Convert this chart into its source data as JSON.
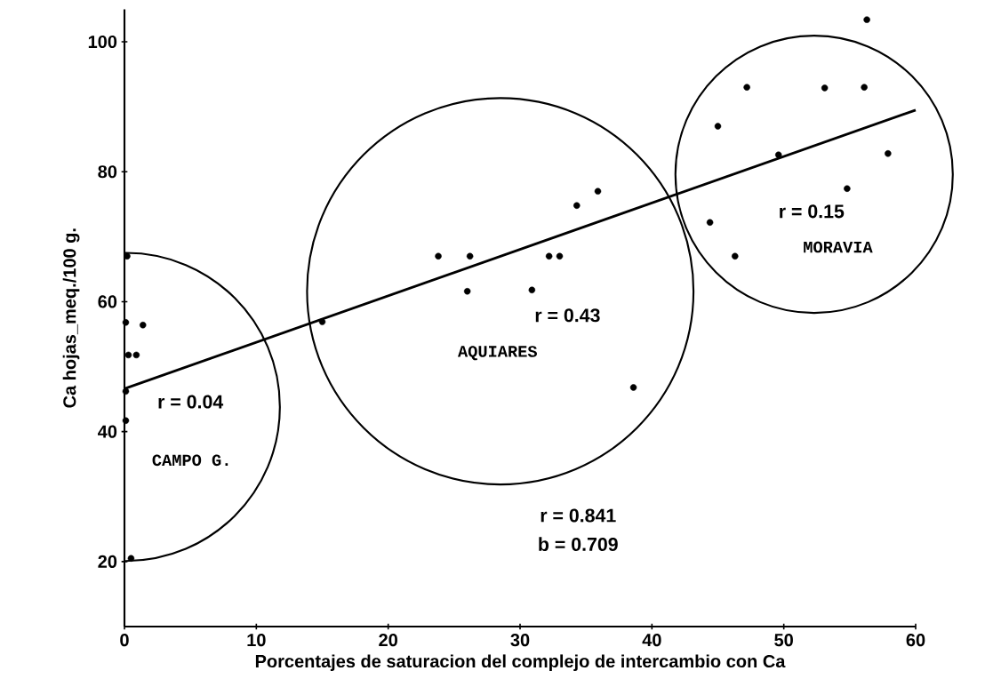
{
  "chart_data": {
    "type": "scatter",
    "xlabel": "Porcentajes de saturacion del complejo de intercambio con Ca",
    "ylabel": "Ca hojas_meq./100 g.",
    "xlim": [
      0,
      60
    ],
    "ylim": [
      10,
      105
    ],
    "xticks": [
      0,
      10,
      20,
      30,
      40,
      50,
      60
    ],
    "yticks": [
      20,
      40,
      60,
      80,
      100
    ],
    "series": [
      {
        "color": "#000000",
        "x": [
          0.2,
          0.1,
          1.4,
          0.3,
          0.9,
          0.1,
          0.1,
          0.5,
          15.0,
          23.8,
          26.2,
          26.0,
          32.2,
          33.0,
          30.9,
          34.3,
          35.9,
          38.6,
          47.2,
          53.1,
          56.1,
          45.0,
          49.6,
          57.9,
          54.8,
          44.4,
          46.3,
          56.3
        ],
        "values": [
          67.0,
          56.8,
          56.4,
          51.8,
          51.8,
          46.2,
          41.7,
          20.5,
          56.9,
          67.0,
          67.0,
          61.6,
          67.0,
          67.0,
          61.8,
          74.8,
          77.0,
          46.8,
          93.0,
          92.9,
          93.0,
          87.0,
          82.6,
          82.8,
          77.4,
          72.2,
          67.0,
          103.4
        ]
      },
      {
        "type": "line",
        "color": "#000000",
        "x": [
          0,
          60
        ],
        "values": [
          46.6,
          89.5
        ]
      }
    ],
    "annotations": [
      "r = 0.04",
      "CAMPO G.",
      "r = 0.43",
      "AQUIARES",
      "r = 0.15",
      "MORAVIA",
      "r = 0.841",
      "b = 0.709"
    ]
  }
}
